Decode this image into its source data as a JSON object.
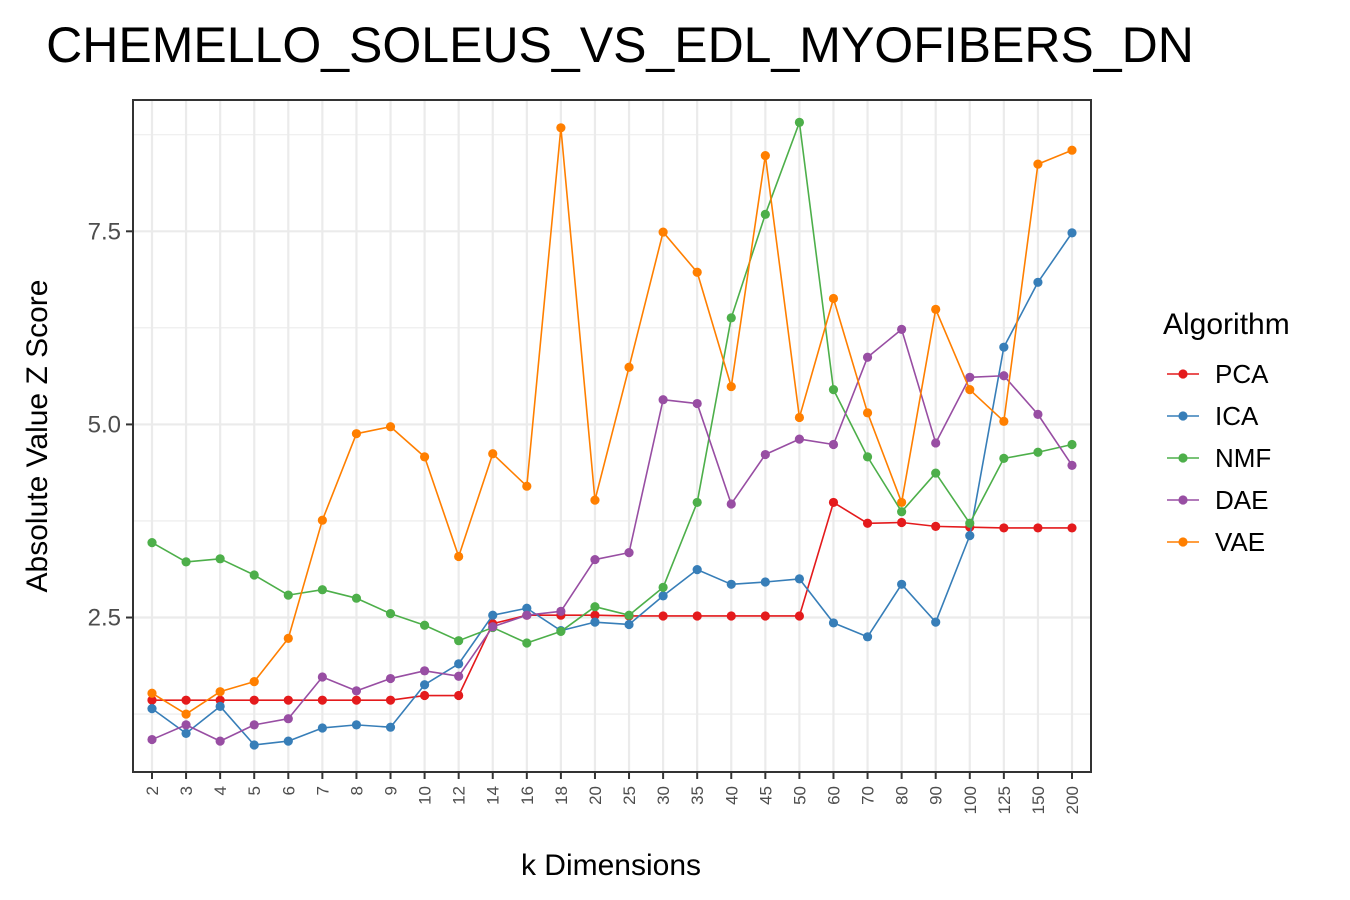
{
  "chart_data": {
    "type": "line",
    "title": "CHEMELLO_SOLEUS_VS_EDL_MYOFIBERS_DN",
    "xlabel": "k Dimensions",
    "ylabel": "Absolute Value Z Score",
    "categories": [
      "2",
      "3",
      "4",
      "5",
      "6",
      "7",
      "8",
      "9",
      "10",
      "12",
      "14",
      "16",
      "18",
      "20",
      "25",
      "30",
      "35",
      "40",
      "45",
      "50",
      "60",
      "70",
      "80",
      "90",
      "100",
      "125",
      "150",
      "200"
    ],
    "ylim": [
      0.5,
      9.2
    ],
    "yticks": [
      2.5,
      5.0,
      7.5
    ],
    "ytick_labels": [
      "2.5",
      "5.0",
      "7.5"
    ],
    "grid": true,
    "legend": {
      "title": "Algorithm",
      "placement": "right"
    },
    "series": [
      {
        "name": "PCA",
        "color": "#E41A1C",
        "values": [
          1.43,
          1.43,
          1.43,
          1.43,
          1.43,
          1.43,
          1.43,
          1.43,
          1.49,
          1.49,
          2.42,
          2.53,
          2.53,
          2.53,
          2.52,
          2.52,
          2.52,
          2.52,
          2.52,
          2.52,
          3.99,
          3.72,
          3.73,
          3.68,
          3.67,
          3.66,
          3.66,
          3.66
        ]
      },
      {
        "name": "ICA",
        "color": "#377EB8",
        "values": [
          1.32,
          1.0,
          1.35,
          0.85,
          0.9,
          1.07,
          1.11,
          1.08,
          1.63,
          1.9,
          2.53,
          2.62,
          2.33,
          2.44,
          2.41,
          2.78,
          3.12,
          2.93,
          2.96,
          3.0,
          2.43,
          2.25,
          2.93,
          2.44,
          3.56,
          6.0,
          6.84,
          7.48
        ]
      },
      {
        "name": "NMF",
        "color": "#4DAF4A",
        "values": [
          3.47,
          3.22,
          3.26,
          3.05,
          2.79,
          2.86,
          2.75,
          2.55,
          2.4,
          2.2,
          2.37,
          2.17,
          2.32,
          2.64,
          2.53,
          2.89,
          3.99,
          6.38,
          7.72,
          8.91,
          5.45,
          4.58,
          3.87,
          4.37,
          3.72,
          4.56,
          4.64,
          4.74
        ]
      },
      {
        "name": "DAE",
        "color": "#984EA3",
        "values": [
          0.92,
          1.11,
          0.9,
          1.11,
          1.19,
          1.73,
          1.55,
          1.71,
          1.81,
          1.74,
          2.38,
          2.53,
          2.58,
          3.25,
          3.34,
          5.32,
          5.27,
          3.97,
          4.61,
          4.81,
          4.74,
          5.87,
          6.23,
          4.76,
          5.61,
          5.63,
          5.13,
          4.47
        ]
      },
      {
        "name": "VAE",
        "color": "#FF7F00",
        "values": [
          1.52,
          1.25,
          1.54,
          1.67,
          2.23,
          3.76,
          4.88,
          4.97,
          4.58,
          3.29,
          4.62,
          4.2,
          8.84,
          4.02,
          5.74,
          7.49,
          6.97,
          5.49,
          8.48,
          5.09,
          6.63,
          5.15,
          3.99,
          6.49,
          5.45,
          5.04,
          8.37,
          8.55
        ]
      }
    ]
  }
}
